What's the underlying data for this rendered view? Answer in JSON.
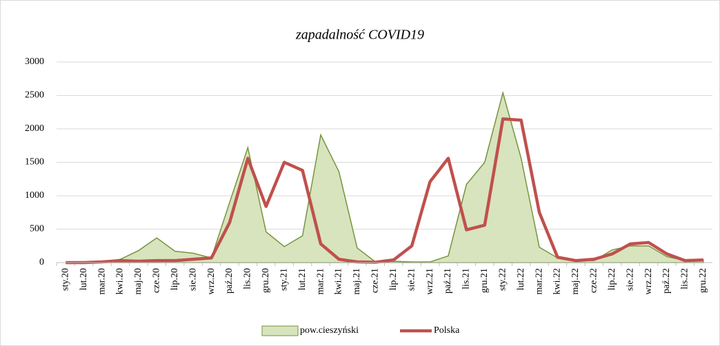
{
  "chart_data": {
    "type": "line",
    "title": "zapadalność COVID19",
    "categories": [
      "sty.20",
      "lut.20",
      "mar.20",
      "kwi.20",
      "maj.20",
      "cze.20",
      "lip.20",
      "sie.20",
      "wrz.20",
      "paź.20",
      "lis.20",
      "gru.20",
      "sty.21",
      "lut.21",
      "mar.21",
      "kwi.21",
      "maj.21",
      "cze.21",
      "lip.21",
      "sie.21",
      "wrz.21",
      "paź.21",
      "lis.21",
      "gru.21",
      "sty.22",
      "lut.22",
      "mar.22",
      "kwi.22",
      "maj.22",
      "cze.22",
      "lip.22",
      "sie.22",
      "wrz.22",
      "paź.22",
      "lis.22",
      "gru.22"
    ],
    "series": [
      {
        "name": "pow.cieszyński",
        "type": "area",
        "color": "#d7e4bd",
        "stroke": "#77933c",
        "values": [
          0,
          0,
          5,
          50,
          180,
          370,
          170,
          140,
          70,
          900,
          1720,
          460,
          240,
          400,
          1910,
          1360,
          220,
          10,
          20,
          10,
          10,
          100,
          1170,
          1500,
          2540,
          1560,
          230,
          70,
          30,
          30,
          190,
          250,
          250,
          90,
          30,
          40
        ]
      },
      {
        "name": "Polska",
        "type": "line",
        "color": "#c0504d",
        "values": [
          0,
          0,
          10,
          30,
          20,
          30,
          30,
          50,
          70,
          600,
          1560,
          840,
          1500,
          1380,
          280,
          50,
          10,
          5,
          40,
          250,
          1210,
          1560,
          490,
          560,
          2150,
          2130,
          750,
          80,
          30,
          50,
          130,
          280,
          300,
          130,
          30,
          40
        ]
      }
    ],
    "ylim": [
      0,
      3000
    ],
    "yticks": [
      0,
      500,
      1000,
      1500,
      2000,
      2500,
      3000
    ],
    "grid": true,
    "legend": "bottom"
  }
}
